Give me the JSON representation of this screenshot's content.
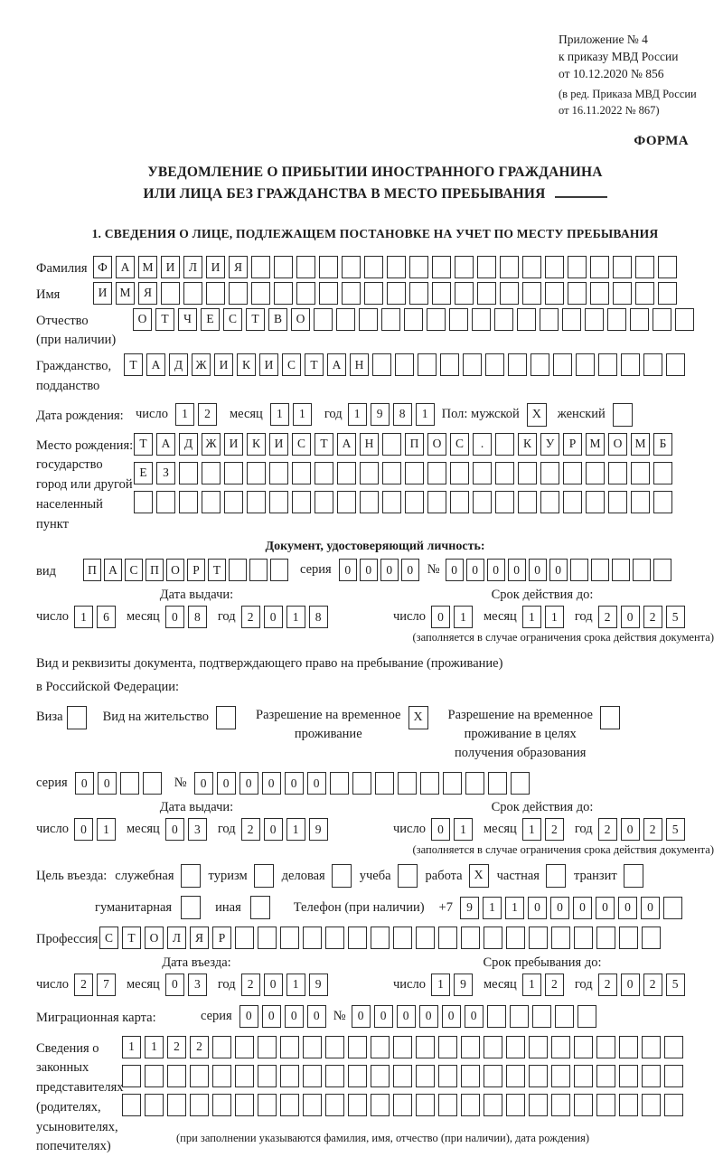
{
  "header": {
    "line1": "Приложение № 4",
    "line2": "к приказу МВД России",
    "line3": "от 10.12.2020 № 856",
    "line4": "(в ред. Приказа МВД России",
    "line5": "от 16.11.2022 № 867)",
    "form_label": "ФОРМА"
  },
  "title": {
    "line1": "УВЕДОМЛЕНИЕ О ПРИБЫТИИ ИНОСТРАННОГО ГРАЖДАНИНА",
    "line2": "ИЛИ ЛИЦА БЕЗ ГРАЖДАНСТВА В МЕСТО ПРЕБЫВАНИЯ"
  },
  "section1_heading": "1. СВЕДЕНИЯ О ЛИЦЕ, ПОДЛЕЖАЩЕМ ПОСТАНОВКЕ НА УЧЕТ ПО МЕСТУ ПРЕБЫВАНИЯ",
  "labels": {
    "day": "число",
    "month": "месяц",
    "year": "год",
    "series": "серия",
    "number": "№",
    "issue_date": "Дата выдачи:",
    "valid_until": "Срок действия до:",
    "restriction_note": "(заполняется в случае ограничения срока действия документа)"
  },
  "surname": {
    "label": "Фамилия",
    "cells": [
      "Ф",
      "А",
      "М",
      "И",
      "Л",
      "И",
      "Я",
      "",
      "",
      "",
      "",
      "",
      "",
      "",
      "",
      "",
      "",
      "",
      "",
      "",
      "",
      "",
      "",
      "",
      "",
      ""
    ]
  },
  "given_name": {
    "label": "Имя",
    "cells": [
      "И",
      "М",
      "Я",
      "",
      "",
      "",
      "",
      "",
      "",
      "",
      "",
      "",
      "",
      "",
      "",
      "",
      "",
      "",
      "",
      "",
      "",
      "",
      "",
      "",
      "",
      ""
    ]
  },
  "patronymic": {
    "label": "Отчество",
    "sublabel": "(при наличии)",
    "cells": [
      "О",
      "Т",
      "Ч",
      "Е",
      "С",
      "Т",
      "В",
      "О",
      "",
      "",
      "",
      "",
      "",
      "",
      "",
      "",
      "",
      "",
      "",
      "",
      "",
      "",
      "",
      "",
      ""
    ]
  },
  "citizenship": {
    "label": "Гражданство,",
    "sublabel": "подданство",
    "cells": [
      "Т",
      "А",
      "Д",
      "Ж",
      "И",
      "К",
      "И",
      "С",
      "Т",
      "А",
      "Н",
      "",
      "",
      "",
      "",
      "",
      "",
      "",
      "",
      "",
      "",
      "",
      "",
      "",
      ""
    ]
  },
  "birth_date": {
    "label": "Дата рождения:",
    "day": [
      "1",
      "2"
    ],
    "month": [
      "1",
      "1"
    ],
    "year": [
      "1",
      "9",
      "8",
      "1"
    ],
    "gender_label": "Пол: мужской",
    "male_value": "X",
    "female_label": "женский",
    "female_value": ""
  },
  "birth_place": {
    "label1": "Место рождения:",
    "label2": "государство",
    "label3": "город или другой",
    "label4": "населенный пункт",
    "row1": [
      "Т",
      "А",
      "Д",
      "Ж",
      "И",
      "К",
      "И",
      "С",
      "Т",
      "А",
      "Н",
      "",
      "П",
      "О",
      "С",
      ".",
      "",
      "К",
      "У",
      "Р",
      "М",
      "О",
      "М",
      "Б"
    ],
    "row2": [
      "Е",
      "З",
      "",
      "",
      "",
      "",
      "",
      "",
      "",
      "",
      "",
      "",
      "",
      "",
      "",
      "",
      "",
      "",
      "",
      "",
      "",
      "",
      "",
      ""
    ],
    "row3": [
      "",
      "",
      "",
      "",
      "",
      "",
      "",
      "",
      "",
      "",
      "",
      "",
      "",
      "",
      "",
      "",
      "",
      "",
      "",
      "",
      "",
      "",
      "",
      ""
    ]
  },
  "identity_doc": {
    "heading": "Документ, удостоверяющий личность:",
    "kind_label": "вид",
    "kind_cells": [
      "П",
      "А",
      "С",
      "П",
      "О",
      "Р",
      "Т",
      "",
      "",
      ""
    ],
    "series_cells": [
      "0",
      "0",
      "0",
      "0"
    ],
    "number_cells": [
      "0",
      "0",
      "0",
      "0",
      "0",
      "0",
      "",
      "",
      "",
      "",
      ""
    ],
    "issue": {
      "day": [
        "1",
        "6"
      ],
      "month": [
        "0",
        "8"
      ],
      "year": [
        "2",
        "0",
        "1",
        "8"
      ]
    },
    "valid": {
      "day": [
        "0",
        "1"
      ],
      "month": [
        "1",
        "1"
      ],
      "year": [
        "2",
        "0",
        "2",
        "5"
      ]
    }
  },
  "residence_doc": {
    "line1": "Вид и реквизиты документа, подтверждающего право на пребывание (проживание)",
    "line2": "в Российской Федерации:",
    "visa_label": "Виза",
    "visa_value": "",
    "permit_label": "Вид на жительство",
    "permit_value": "",
    "temp_line1": "Разрешение на временное",
    "temp_line2": "проживание",
    "temp_value": "X",
    "edu_line1": "Разрешение на временное",
    "edu_line2": "проживание в целях",
    "edu_line3": "получения образования",
    "edu_value": "",
    "series_cells": [
      "0",
      "0",
      "",
      ""
    ],
    "number_cells": [
      "0",
      "0",
      "0",
      "0",
      "0",
      "0",
      "",
      "",
      "",
      "",
      "",
      "",
      "",
      "",
      ""
    ],
    "issue": {
      "day": [
        "0",
        "1"
      ],
      "month": [
        "0",
        "3"
      ],
      "year": [
        "2",
        "0",
        "1",
        "9"
      ]
    },
    "valid": {
      "day": [
        "0",
        "1"
      ],
      "month": [
        "1",
        "2"
      ],
      "year": [
        "2",
        "0",
        "2",
        "5"
      ]
    }
  },
  "visit_purpose": {
    "label": "Цель въезда:",
    "options": [
      {
        "label": "служебная",
        "value": ""
      },
      {
        "label": "туризм",
        "value": ""
      },
      {
        "label": "деловая",
        "value": ""
      },
      {
        "label": "учеба",
        "value": ""
      },
      {
        "label": "работа",
        "value": "X"
      },
      {
        "label": "частная",
        "value": ""
      },
      {
        "label": "транзит",
        "value": ""
      }
    ],
    "options2": [
      {
        "label": "гуманитарная",
        "value": ""
      },
      {
        "label": "иная",
        "value": ""
      }
    ],
    "phone_label": "Телефон (при наличии)",
    "phone_prefix": "+7",
    "phone_cells": [
      "9",
      "1",
      "1",
      "0",
      "0",
      "0",
      "0",
      "0",
      "0",
      ""
    ]
  },
  "profession": {
    "label": "Профессия",
    "cells": [
      "С",
      "Т",
      "О",
      "Л",
      "Я",
      "Р",
      "",
      "",
      "",
      "",
      "",
      "",
      "",
      "",
      "",
      "",
      "",
      "",
      "",
      "",
      "",
      "",
      "",
      "",
      ""
    ]
  },
  "entry": {
    "heading": "Дата въезда:",
    "day": [
      "2",
      "7"
    ],
    "month": [
      "0",
      "3"
    ],
    "year": [
      "2",
      "0",
      "1",
      "9"
    ]
  },
  "stay": {
    "heading": "Срок пребывания до:",
    "day": [
      "1",
      "9"
    ],
    "month": [
      "1",
      "2"
    ],
    "year": [
      "2",
      "0",
      "2",
      "5"
    ]
  },
  "migration_card": {
    "label": "Миграционная карта:",
    "series_cells": [
      "0",
      "0",
      "0",
      "0"
    ],
    "number_cells": [
      "0",
      "0",
      "0",
      "0",
      "0",
      "0",
      "",
      "",
      "",
      "",
      ""
    ]
  },
  "representatives": {
    "label_line1": "Сведения о",
    "label_line2": "законных",
    "label_line3": "представителях",
    "label_line4": "(родителях,",
    "label_line5": "усыновителях,",
    "label_line6": "попечителях)",
    "row1": [
      "1",
      "1",
      "2",
      "2",
      "",
      "",
      "",
      "",
      "",
      "",
      "",
      "",
      "",
      "",
      "",
      "",
      "",
      "",
      "",
      "",
      "",
      "",
      "",
      "",
      ""
    ],
    "row2": [
      "",
      "",
      "",
      "",
      "",
      "",
      "",
      "",
      "",
      "",
      "",
      "",
      "",
      "",
      "",
      "",
      "",
      "",
      "",
      "",
      "",
      "",
      "",
      "",
      ""
    ],
    "row3": [
      "",
      "",
      "",
      "",
      "",
      "",
      "",
      "",
      "",
      "",
      "",
      "",
      "",
      "",
      "",
      "",
      "",
      "",
      "",
      "",
      "",
      "",
      "",
      "",
      ""
    ],
    "note": "(при заполнении указываются фамилия, имя, отчество (при наличии), дата рождения)"
  }
}
